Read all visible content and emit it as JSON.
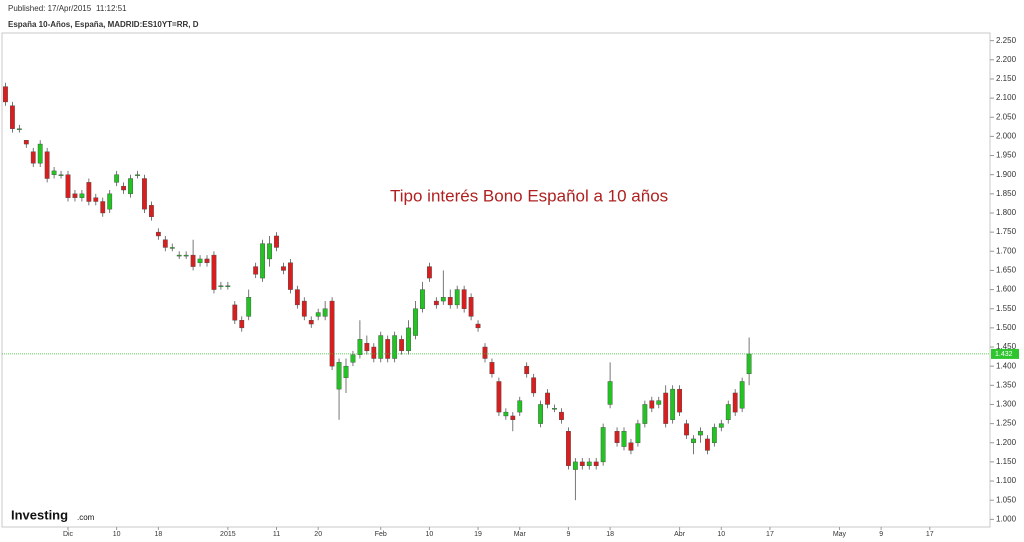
{
  "published": "Published: 17/Apr/2015",
  "published_time": "11:12:51",
  "chart_data": {
    "type": "candlestick",
    "title": "España 10-Años, España, MADRID:ES10YT=RR, D",
    "annotation": "Tipo interés Bono Español a 10 años",
    "logo": "Investing",
    "logo_suffix": ".com",
    "up_color": "#22c322",
    "down_color": "#d81e1e",
    "last_color": "#2ec52e",
    "grid": false,
    "categories": [
      null,
      null,
      null,
      null,
      null,
      null,
      null,
      null,
      null,
      "Dic",
      null,
      null,
      null,
      null,
      null,
      null,
      "10",
      null,
      null,
      null,
      null,
      null,
      "18",
      null,
      null,
      null,
      null,
      null,
      null,
      null,
      null,
      null,
      "2015",
      null,
      null,
      null,
      null,
      null,
      null,
      "11",
      null,
      null,
      null,
      null,
      null,
      "20",
      null,
      null,
      null,
      null,
      null,
      null,
      null,
      null,
      "Feb",
      null,
      null,
      null,
      null,
      null,
      null,
      "10",
      null,
      null,
      null,
      null,
      null,
      null,
      "19",
      null,
      null,
      null,
      null,
      null,
      "Mar",
      null,
      null,
      null,
      null,
      null,
      null,
      "9",
      null,
      null,
      null,
      null,
      null,
      "18",
      null,
      null,
      null,
      null,
      null,
      null,
      null,
      null,
      null,
      "Abr",
      null,
      null,
      null,
      null,
      null,
      "10",
      null,
      null,
      null,
      null,
      null,
      null,
      "17",
      null,
      null,
      null,
      null,
      null,
      null,
      null,
      null,
      null,
      "May",
      null,
      null,
      null,
      null,
      null,
      "9",
      null,
      null,
      null,
      null,
      null,
      null,
      "17",
      null,
      null,
      null,
      null,
      null,
      null,
      null,
      null
    ],
    "open": [
      2.13,
      2.08,
      2.02,
      1.99,
      1.96,
      1.93,
      1.96,
      1.9,
      1.9,
      1.9,
      1.85,
      1.84,
      1.88,
      1.84,
      1.83,
      1.81,
      1.88,
      1.87,
      1.85,
      1.9,
      1.89,
      1.82,
      1.75,
      1.73,
      1.71,
      1.69,
      1.69,
      1.69,
      1.67,
      1.68,
      1.69,
      1.61,
      1.61,
      1.56,
      1.52,
      1.53,
      1.66,
      1.63,
      1.68,
      1.74,
      1.66,
      1.67,
      1.6,
      1.57,
      1.52,
      1.53,
      1.53,
      1.57,
      1.34,
      1.37,
      1.41,
      1.43,
      1.46,
      1.45,
      1.42,
      1.47,
      1.42,
      1.47,
      1.44,
      1.48,
      1.55,
      1.66,
      1.57,
      1.57,
      1.58,
      1.56,
      1.6,
      1.58,
      1.51,
      1.45,
      1.41,
      1.36,
      1.27,
      1.27,
      1.28,
      1.4,
      1.37,
      1.25,
      1.33,
      1.29,
      1.28,
      1.23,
      1.13,
      1.15,
      1.14,
      1.15,
      1.15,
      1.3,
      1.23,
      1.19,
      1.2,
      1.2,
      1.25,
      1.31,
      1.3,
      1.33,
      1.26,
      1.34,
      1.25,
      1.2,
      1.22,
      1.21,
      1.2,
      1.24,
      1.26,
      1.33,
      1.29,
      1.38,
      null,
      null,
      null,
      null,
      null,
      null,
      null,
      null,
      null,
      null,
      null,
      null,
      null,
      null,
      null,
      null,
      null,
      null,
      null,
      null,
      null,
      null,
      null,
      null,
      null,
      null,
      null,
      null,
      null,
      null,
      null,
      null,
      null,
      null
    ],
    "high": [
      2.14,
      2.09,
      2.03,
      1.99,
      1.97,
      1.99,
      1.97,
      1.92,
      1.91,
      1.91,
      1.86,
      1.86,
      1.89,
      1.85,
      1.84,
      1.86,
      1.91,
      1.88,
      1.9,
      1.91,
      1.9,
      1.83,
      1.76,
      1.74,
      1.72,
      1.7,
      1.7,
      1.73,
      1.69,
      1.69,
      1.7,
      1.62,
      1.62,
      1.57,
      1.53,
      1.6,
      1.67,
      1.73,
      1.74,
      1.75,
      1.67,
      1.68,
      1.61,
      1.58,
      1.53,
      1.55,
      1.57,
      1.58,
      1.42,
      1.42,
      1.44,
      1.52,
      1.48,
      1.46,
      1.49,
      1.48,
      1.49,
      1.48,
      1.52,
      1.57,
      1.62,
      1.67,
      1.58,
      1.65,
      1.6,
      1.61,
      1.61,
      1.59,
      1.52,
      1.46,
      1.42,
      1.37,
      1.29,
      1.28,
      1.32,
      1.41,
      1.38,
      1.31,
      1.34,
      1.3,
      1.29,
      1.24,
      1.16,
      1.16,
      1.16,
      1.16,
      1.25,
      1.41,
      1.24,
      1.24,
      1.21,
      1.26,
      1.31,
      1.32,
      1.32,
      1.35,
      1.35,
      1.35,
      1.26,
      1.22,
      1.24,
      1.22,
      1.25,
      1.26,
      1.31,
      1.34,
      1.37,
      1.475,
      null,
      null,
      null,
      null,
      null,
      null,
      null,
      null,
      null,
      null,
      null,
      null,
      null,
      null,
      null,
      null,
      null,
      null,
      null,
      null,
      null,
      null,
      null,
      null,
      null,
      null,
      null,
      null,
      null,
      null,
      null,
      null,
      null,
      null
    ],
    "low": [
      2.08,
      2.01,
      2.01,
      1.97,
      1.92,
      1.92,
      1.88,
      1.89,
      1.89,
      1.83,
      1.83,
      1.83,
      1.82,
      1.82,
      1.79,
      1.8,
      1.87,
      1.85,
      1.84,
      1.89,
      1.8,
      1.78,
      1.73,
      1.7,
      1.7,
      1.68,
      1.68,
      1.65,
      1.66,
      1.66,
      1.59,
      1.6,
      1.6,
      1.51,
      1.49,
      1.52,
      1.63,
      1.62,
      1.66,
      1.7,
      1.64,
      1.59,
      1.55,
      1.52,
      1.5,
      1.52,
      1.52,
      1.39,
      1.26,
      1.33,
      1.4,
      1.42,
      1.43,
      1.41,
      1.41,
      1.41,
      1.41,
      1.43,
      1.43,
      1.47,
      1.54,
      1.62,
      1.55,
      1.56,
      1.55,
      1.55,
      1.54,
      1.52,
      1.49,
      1.41,
      1.37,
      1.27,
      1.26,
      1.23,
      1.27,
      1.37,
      1.32,
      1.24,
      1.29,
      1.28,
      1.25,
      1.13,
      1.05,
      1.13,
      1.13,
      1.13,
      1.14,
      1.29,
      1.19,
      1.18,
      1.17,
      1.19,
      1.24,
      1.28,
      1.29,
      1.24,
      1.25,
      1.27,
      1.21,
      1.17,
      1.2,
      1.17,
      1.19,
      1.23,
      1.25,
      1.27,
      1.28,
      1.35,
      null,
      null,
      null,
      null,
      null,
      null,
      null,
      null,
      null,
      null,
      null,
      null,
      null,
      null,
      null,
      null,
      null,
      null,
      null,
      null,
      null,
      null,
      null,
      null,
      null,
      null,
      null,
      null,
      null,
      null,
      null,
      null,
      null,
      null
    ],
    "close": [
      2.09,
      2.02,
      2.02,
      1.98,
      1.93,
      1.98,
      1.89,
      1.91,
      1.9,
      1.84,
      1.84,
      1.85,
      1.83,
      1.83,
      1.8,
      1.85,
      1.9,
      1.86,
      1.89,
      1.9,
      1.81,
      1.79,
      1.74,
      1.71,
      1.71,
      1.69,
      1.69,
      1.66,
      1.68,
      1.67,
      1.6,
      1.61,
      1.61,
      1.52,
      1.5,
      1.58,
      1.64,
      1.72,
      1.72,
      1.71,
      1.65,
      1.6,
      1.56,
      1.53,
      1.51,
      1.54,
      1.55,
      1.4,
      1.41,
      1.4,
      1.43,
      1.47,
      1.44,
      1.42,
      1.48,
      1.42,
      1.48,
      1.44,
      1.5,
      1.55,
      1.6,
      1.63,
      1.56,
      1.58,
      1.56,
      1.6,
      1.55,
      1.53,
      1.5,
      1.42,
      1.38,
      1.28,
      1.28,
      1.26,
      1.31,
      1.38,
      1.33,
      1.3,
      1.3,
      1.29,
      1.26,
      1.14,
      1.15,
      1.14,
      1.15,
      1.14,
      1.24,
      1.36,
      1.2,
      1.23,
      1.18,
      1.25,
      1.3,
      1.29,
      1.31,
      1.25,
      1.34,
      1.28,
      1.22,
      1.21,
      1.23,
      1.18,
      1.24,
      1.25,
      1.3,
      1.28,
      1.36,
      1.432,
      null,
      null,
      null,
      null,
      null,
      null,
      null,
      null,
      null,
      null,
      null,
      null,
      null,
      null,
      null,
      null,
      null,
      null,
      null,
      null,
      null,
      null,
      null,
      null,
      null,
      null,
      null,
      null,
      null,
      null,
      null,
      null,
      null,
      null
    ],
    "ylim": [
      0.98,
      2.27
    ],
    "yticks": [
      {
        "value": 1,
        "label": "1.000"
      },
      {
        "value": 1.05,
        "label": "1.050"
      },
      {
        "value": 1.1,
        "label": "1.100"
      },
      {
        "value": 1.15,
        "label": "1.150"
      },
      {
        "value": 1.2,
        "label": "1.200"
      },
      {
        "value": 1.25,
        "label": "1.250"
      },
      {
        "value": 1.3,
        "label": "1.300"
      },
      {
        "value": 1.35,
        "label": "1.350"
      },
      {
        "value": 1.4,
        "label": "1.400"
      },
      {
        "value": 1.45,
        "label": "1.450"
      },
      {
        "value": 1.5,
        "label": "1.500"
      },
      {
        "value": 1.55,
        "label": "1.550"
      },
      {
        "value": 1.6,
        "label": "1.600"
      },
      {
        "value": 1.65,
        "label": "1.650"
      },
      {
        "value": 1.7,
        "label": "1.700"
      },
      {
        "value": 1.75,
        "label": "1.750"
      },
      {
        "value": 1.8,
        "label": "1.800"
      },
      {
        "value": 1.85,
        "label": "1.850"
      },
      {
        "value": 1.9,
        "label": "1.900"
      },
      {
        "value": 1.95,
        "label": "1.950"
      },
      {
        "value": 2,
        "label": "2.000"
      },
      {
        "value": 2.05,
        "label": "2.050"
      },
      {
        "value": 2.1,
        "label": "2.100"
      },
      {
        "value": 2.15,
        "label": "2.150"
      },
      {
        "value": 2.2,
        "label": "2.200"
      },
      {
        "value": 2.25,
        "label": "2.250"
      }
    ]
  }
}
